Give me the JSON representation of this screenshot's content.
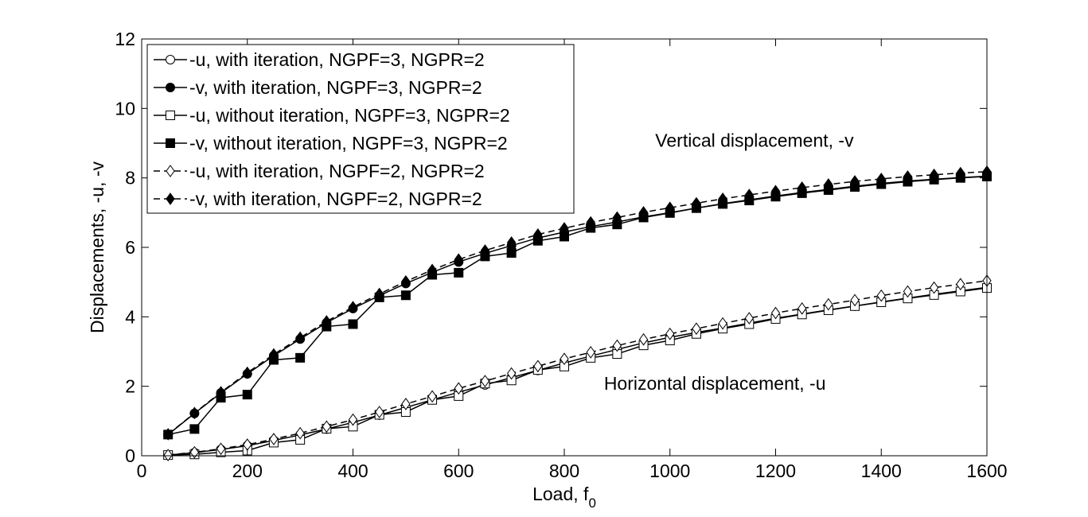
{
  "chart_data": {
    "type": "line",
    "title": "",
    "xlabel": "Load, f",
    "xlabel_subscript": "0",
    "ylabel": "Displacements, -u, -v",
    "xlim": [
      0,
      1600
    ],
    "ylim": [
      0,
      12
    ],
    "x_ticks": [
      0,
      200,
      400,
      600,
      800,
      1000,
      1200,
      1400,
      1600
    ],
    "y_ticks": [
      0,
      2,
      4,
      6,
      8,
      10,
      12
    ],
    "grid": false,
    "legend_position": "top-left",
    "annotations": [
      {
        "text": "Vertical displacement, -v",
        "x": 1160,
        "y": 8.9
      },
      {
        "text": "Horizontal displacement, -u",
        "x": 1085,
        "y": 1.9
      }
    ],
    "x": [
      50,
      100,
      150,
      200,
      250,
      300,
      350,
      400,
      450,
      500,
      550,
      600,
      650,
      700,
      750,
      800,
      850,
      900,
      950,
      1000,
      1050,
      1100,
      1150,
      1200,
      1250,
      1300,
      1350,
      1400,
      1450,
      1500,
      1550,
      1600
    ],
    "series": [
      {
        "name": "-u, with iteration, NGPF=3, NGPR=2",
        "marker": "circle-open",
        "dash": "solid",
        "values": [
          0.02,
          0.09,
          0.18,
          0.29,
          0.44,
          0.6,
          0.77,
          0.96,
          1.17,
          1.39,
          1.61,
          1.83,
          2.04,
          2.25,
          2.46,
          2.67,
          2.87,
          3.06,
          3.25,
          3.41,
          3.55,
          3.68,
          3.82,
          3.96,
          4.08,
          4.2,
          4.31,
          4.43,
          4.54,
          4.65,
          4.75,
          4.85
        ]
      },
      {
        "name": "-v, with iteration, NGPF=3, NGPR=2",
        "marker": "circle-filled",
        "dash": "solid",
        "values": [
          0.61,
          1.22,
          1.81,
          2.36,
          2.88,
          3.36,
          3.83,
          4.24,
          4.61,
          4.96,
          5.28,
          5.58,
          5.83,
          6.05,
          6.27,
          6.44,
          6.6,
          6.73,
          6.88,
          7.0,
          7.13,
          7.26,
          7.37,
          7.48,
          7.58,
          7.67,
          7.76,
          7.84,
          7.91,
          7.96,
          8.01,
          8.05
        ]
      },
      {
        "name": "-u, without iteration, NGPF=3, NGPR=2",
        "marker": "square-open",
        "dash": "solid",
        "values": [
          0.02,
          0.04,
          0.1,
          0.15,
          0.38,
          0.46,
          0.78,
          0.84,
          1.18,
          1.26,
          1.61,
          1.72,
          2.08,
          2.17,
          2.47,
          2.57,
          2.82,
          2.93,
          3.18,
          3.32,
          3.51,
          3.66,
          3.79,
          3.94,
          4.07,
          4.19,
          4.31,
          4.42,
          4.53,
          4.63,
          4.73,
          4.83
        ]
      },
      {
        "name": "-v, without iteration, NGPF=3, NGPR=2",
        "marker": "square-filled",
        "dash": "solid",
        "values": [
          0.61,
          0.77,
          1.67,
          1.76,
          2.76,
          2.82,
          3.72,
          3.79,
          4.56,
          4.62,
          5.21,
          5.27,
          5.74,
          5.84,
          6.19,
          6.31,
          6.56,
          6.66,
          6.86,
          6.99,
          7.13,
          7.25,
          7.35,
          7.46,
          7.56,
          7.65,
          7.74,
          7.82,
          7.89,
          7.95,
          8.0,
          8.04
        ]
      },
      {
        "name": "-u, with iteration, NGPF=2, NGPR=2",
        "marker": "diamond-open",
        "dash": "dashed",
        "values": [
          0.02,
          0.1,
          0.2,
          0.32,
          0.48,
          0.65,
          0.84,
          1.04,
          1.26,
          1.49,
          1.71,
          1.94,
          2.15,
          2.37,
          2.58,
          2.79,
          2.98,
          3.17,
          3.35,
          3.51,
          3.66,
          3.81,
          3.96,
          4.11,
          4.24,
          4.36,
          4.48,
          4.61,
          4.73,
          4.84,
          4.94,
          5.04
        ]
      },
      {
        "name": "-v, with iteration, NGPF=2, NGPR=2",
        "marker": "diamond-filled",
        "dash": "dashed",
        "values": [
          0.62,
          1.23,
          1.83,
          2.39,
          2.92,
          3.4,
          3.87,
          4.28,
          4.66,
          5.02,
          5.35,
          5.65,
          5.91,
          6.14,
          6.37,
          6.55,
          6.72,
          6.86,
          7.01,
          7.14,
          7.27,
          7.4,
          7.51,
          7.62,
          7.72,
          7.81,
          7.9,
          7.97,
          8.04,
          8.09,
          8.14,
          8.18
        ]
      }
    ]
  }
}
